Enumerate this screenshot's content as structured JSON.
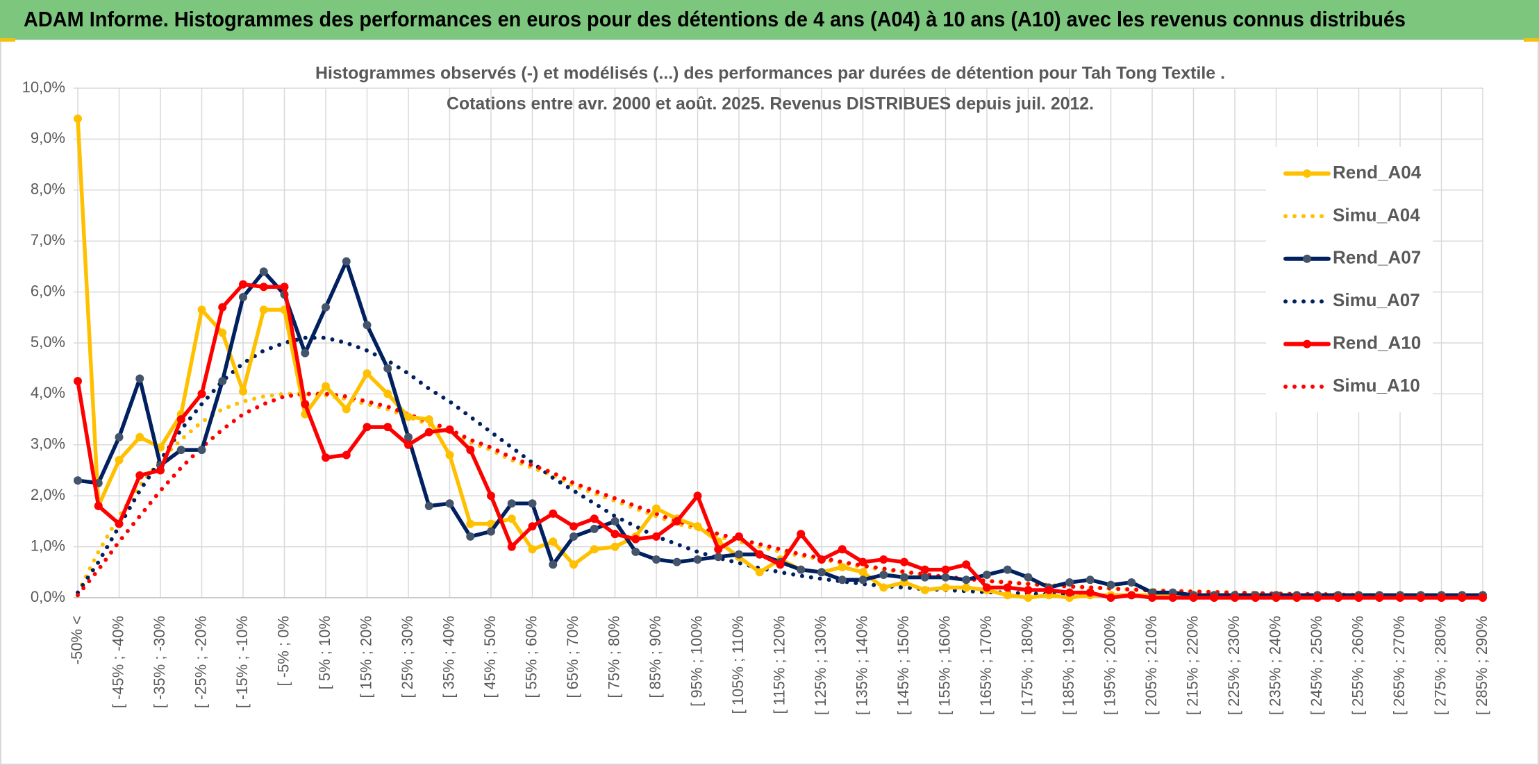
{
  "header": {
    "title": "ADAM Informe. Histogrammes des performances en euros pour des détentions de 4 ans (A04) à 10 ans (A10) avec les revenus connus distribués"
  },
  "chart_data": {
    "type": "line",
    "title": "Histogrammes observés (-) et modélisés (...) des performances par durées de détention pour Tah Tong Textile .",
    "subtitle": "Cotations entre avr. 2000 et août. 2025. Revenus DISTRIBUES depuis juil. 2012.",
    "categories": [
      "-50% <",
      null,
      "[ -45% ; -40%",
      null,
      "[ -35% ; -30%",
      null,
      "[ -25% ; -20%",
      null,
      "[ -15% ; -10%",
      null,
      "[ -5% ; 0%",
      null,
      "[ 5% ; 10%",
      null,
      "[ 15% ; 20%",
      null,
      "[ 25% ; 30%",
      null,
      "[ 35% ; 40%",
      null,
      "[ 45% ; 50%",
      null,
      "[ 55% ; 60%",
      null,
      "[ 65% ; 70%",
      null,
      "[ 75% ; 80%",
      null,
      "[ 85% ; 90%",
      null,
      "[ 95% ; 100%",
      null,
      "[ 105% ; 110%",
      null,
      "[ 115% ; 120%",
      null,
      "[ 125% ; 130%",
      null,
      "[ 135% ; 140%",
      null,
      "[ 145% ; 150%",
      null,
      "[ 155% ; 160%",
      null,
      "[ 165% ; 170%",
      null,
      "[ 175% ; 180%",
      null,
      "[ 185% ; 190%",
      null,
      "[ 195% ; 200%",
      null,
      "[ 205% ; 210%",
      null,
      "[ 215% ; 220%",
      null,
      "[ 225% ; 230%",
      null,
      "[ 235% ; 240%",
      null,
      "[ 245% ; 250%",
      null,
      "[ 255% ; 260%",
      null,
      "[ 265% ; 270%",
      null,
      "[ 275% ; 280%",
      null,
      "[ 285% ; 290%"
    ],
    "series": [
      {
        "name": "Rend_A04",
        "color": "#FFC000",
        "style": "solid",
        "marker": true,
        "marker_color": "#FFC000",
        "values": [
          9.4,
          1.8,
          2.7,
          3.15,
          2.95,
          3.6,
          5.65,
          5.2,
          4.05,
          5.65,
          5.65,
          3.6,
          4.15,
          3.7,
          4.4,
          4.0,
          3.55,
          3.5,
          2.8,
          1.45,
          1.45,
          1.55,
          0.95,
          1.1,
          0.65,
          0.95,
          1.0,
          1.2,
          1.75,
          1.55,
          1.4,
          1.1,
          0.8,
          0.5,
          0.75,
          0.55,
          0.5,
          0.6,
          0.5,
          0.2,
          0.3,
          0.15,
          0.2,
          0.2,
          0.15,
          0.05,
          0,
          0.05,
          0,
          0.05,
          0.05,
          0.05,
          0.05,
          0.05,
          0.05,
          0.05,
          0.05,
          0.05,
          0.05,
          0.05,
          0.05,
          0.05,
          0.05,
          0.05,
          0.05,
          0.05,
          0.05,
          0.05,
          0.05
        ]
      },
      {
        "name": "Simu_A04",
        "color": "#FFC000",
        "style": "dotted",
        "marker": false,
        "values": [
          0.1,
          0.9,
          1.6,
          2.2,
          2.7,
          3.1,
          3.45,
          3.7,
          3.85,
          3.95,
          4.0,
          4.0,
          3.97,
          3.9,
          3.8,
          3.7,
          3.55,
          3.4,
          3.25,
          3.05,
          2.9,
          2.7,
          2.55,
          2.4,
          2.2,
          2.05,
          1.9,
          1.75,
          1.6,
          1.45,
          1.35,
          1.2,
          1.1,
          1.0,
          0.9,
          0.82,
          0.75,
          0.68,
          0.6,
          0.55,
          0.5,
          0.45,
          0.4,
          0.37,
          0.33,
          0.3,
          0.27,
          0.25,
          0.22,
          0.2,
          0.18,
          0.16,
          0.15,
          0.13,
          0.12,
          0.11,
          0.1,
          0.09,
          0.08,
          0.08,
          0.07,
          0.06,
          0.06,
          0.05,
          0.05,
          0.04,
          0.04,
          0.04,
          0.03
        ]
      },
      {
        "name": "Rend_A07",
        "color": "#002060",
        "style": "solid",
        "marker": true,
        "marker_color": "#44546A",
        "values": [
          2.3,
          2.25,
          3.15,
          4.3,
          2.6,
          2.9,
          2.9,
          4.25,
          5.9,
          6.4,
          5.95,
          4.8,
          5.7,
          6.6,
          5.35,
          4.5,
          3.15,
          1.8,
          1.85,
          1.2,
          1.3,
          1.85,
          1.85,
          0.65,
          1.2,
          1.35,
          1.5,
          0.9,
          0.75,
          0.7,
          0.75,
          0.8,
          0.85,
          0.85,
          0.7,
          0.55,
          0.5,
          0.35,
          0.35,
          0.45,
          0.4,
          0.4,
          0.4,
          0.35,
          0.45,
          0.55,
          0.4,
          0.2,
          0.3,
          0.35,
          0.25,
          0.3,
          0.1,
          0.1,
          0.05,
          0.05,
          0.05,
          0.05,
          0.05,
          0.05,
          0.05,
          0.05,
          0.05,
          0.05,
          0.05,
          0.05,
          0.05,
          0.05,
          0.05
        ]
      },
      {
        "name": "Simu_A07",
        "color": "#002060",
        "style": "dotted",
        "marker": false,
        "values": [
          0.1,
          0.7,
          1.4,
          2.1,
          2.7,
          3.3,
          3.8,
          4.25,
          4.6,
          4.85,
          5.0,
          5.1,
          5.1,
          5.0,
          4.85,
          4.65,
          4.4,
          4.1,
          3.85,
          3.55,
          3.25,
          2.95,
          2.65,
          2.35,
          2.1,
          1.85,
          1.6,
          1.4,
          1.2,
          1.05,
          0.9,
          0.78,
          0.68,
          0.58,
          0.5,
          0.43,
          0.37,
          0.32,
          0.27,
          0.23,
          0.2,
          0.17,
          0.15,
          0.13,
          0.11,
          0.1,
          0.08,
          0.07,
          0.06,
          0.05,
          0.05,
          0.04,
          0.04,
          0.03,
          0.03,
          0.03,
          0.02,
          0.02,
          0.02,
          0.02,
          0.01,
          0.01,
          0.01,
          0.01,
          0.01,
          0.01,
          0.01,
          0.01,
          0.01
        ]
      },
      {
        "name": "Rend_A10",
        "color": "#FF0000",
        "style": "solid",
        "marker": true,
        "marker_color": "#FF0000",
        "values": [
          4.25,
          1.8,
          1.45,
          2.4,
          2.5,
          3.5,
          4.0,
          5.7,
          6.15,
          6.1,
          6.1,
          3.8,
          2.75,
          2.8,
          3.35,
          3.35,
          3.0,
          3.25,
          3.3,
          2.9,
          2.0,
          1.0,
          1.4,
          1.65,
          1.4,
          1.55,
          1.25,
          1.15,
          1.2,
          1.5,
          2.0,
          0.95,
          1.2,
          0.85,
          0.65,
          1.25,
          0.75,
          0.95,
          0.7,
          0.75,
          0.7,
          0.55,
          0.55,
          0.65,
          0.2,
          0.2,
          0.15,
          0.15,
          0.1,
          0.1,
          0,
          0.05,
          0,
          0,
          0,
          0,
          0,
          0,
          0,
          0,
          0,
          0,
          0,
          0,
          0,
          0,
          0,
          0,
          0
        ]
      },
      {
        "name": "Simu_A10",
        "color": "#FF0000",
        "style": "dotted",
        "marker": false,
        "values": [
          0.05,
          0.55,
          1.1,
          1.6,
          2.1,
          2.55,
          2.95,
          3.3,
          3.6,
          3.8,
          3.95,
          4.0,
          4.0,
          3.95,
          3.85,
          3.75,
          3.6,
          3.45,
          3.3,
          3.1,
          2.95,
          2.75,
          2.6,
          2.45,
          2.25,
          2.1,
          1.95,
          1.8,
          1.65,
          1.5,
          1.4,
          1.25,
          1.15,
          1.05,
          0.95,
          0.85,
          0.78,
          0.7,
          0.63,
          0.57,
          0.51,
          0.46,
          0.41,
          0.37,
          0.33,
          0.3,
          0.27,
          0.24,
          0.22,
          0.2,
          0.18,
          0.16,
          0.14,
          0.13,
          0.12,
          0.11,
          0.1,
          0.09,
          0.08,
          0.07,
          0.07,
          0.06,
          0.05,
          0.05,
          0.05,
          0.04,
          0.04,
          0.04,
          0.03
        ]
      }
    ],
    "ylim": [
      0,
      10
    ],
    "yticks": [
      {
        "value": 0,
        "label": "0,0%"
      },
      {
        "value": 1,
        "label": "1,0%"
      },
      {
        "value": 2,
        "label": "2,0%"
      },
      {
        "value": 3,
        "label": "3,0%"
      },
      {
        "value": 4,
        "label": "4,0%"
      },
      {
        "value": 5,
        "label": "5,0%"
      },
      {
        "value": 6,
        "label": "6,0%"
      },
      {
        "value": 7,
        "label": "7,0%"
      },
      {
        "value": 8,
        "label": "8,0%"
      },
      {
        "value": 9,
        "label": "9,0%"
      },
      {
        "value": 10,
        "label": "10,0%"
      }
    ],
    "grid": true,
    "legend": "right"
  }
}
